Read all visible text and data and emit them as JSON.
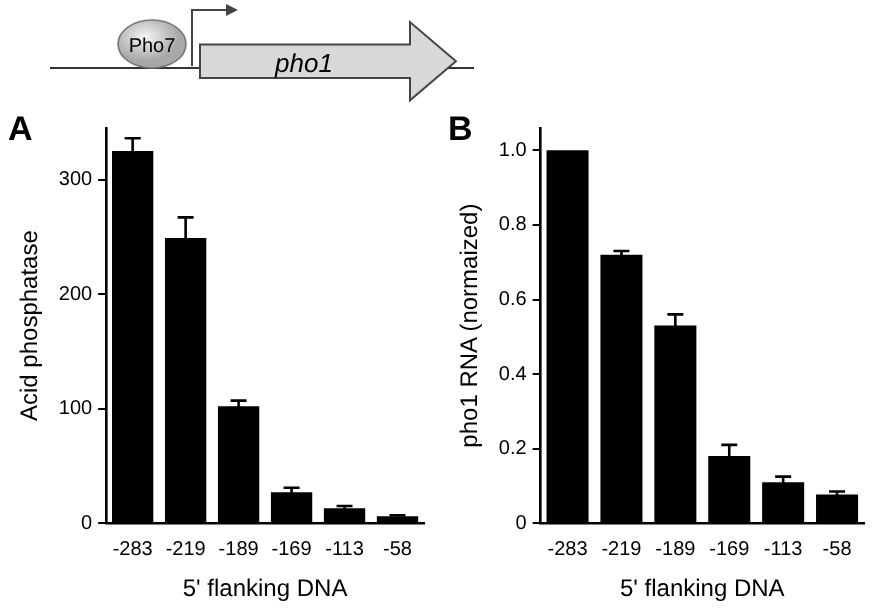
{
  "chart_data": [
    {
      "type": "other",
      "annotations": [
        "Pho7",
        "pho1"
      ]
    },
    {
      "type": "bar",
      "annotations": [
        "A"
      ],
      "xlabel": "5' flanking DNA",
      "ylabel": "Acid phosphatase",
      "categories": [
        "-283",
        "-219",
        "-189",
        "-169",
        "-113",
        "-58"
      ],
      "values": [
        325,
        249,
        102,
        27,
        13,
        6
      ],
      "errors": [
        11,
        18,
        5,
        4,
        2,
        1
      ],
      "color": "#000000",
      "ylim": [
        0,
        345
      ],
      "yticks": [
        0,
        100,
        200,
        300
      ],
      "grid": false
    },
    {
      "type": "bar",
      "annotations": [
        "B"
      ],
      "xlabel": "5' flanking DNA",
      "ylabel": "pho1 RNA (normaized)",
      "categories": [
        "-283",
        "-219",
        "-189",
        "-169",
        "-113",
        "-58"
      ],
      "values": [
        1.0,
        0.72,
        0.53,
        0.18,
        0.11,
        0.077
      ],
      "errors": [
        null,
        0.01,
        0.03,
        0.03,
        0.015,
        0.008
      ],
      "color": "#000000",
      "ylim": [
        0,
        1.06
      ],
      "yticks": [
        0,
        {
          "value": 0.2,
          "label": "0.2"
        },
        {
          "value": 0.4,
          "label": "0.4"
        },
        {
          "value": 0.6,
          "label": "0.6"
        },
        {
          "value": 0.8,
          "label": "0.8"
        },
        {
          "value": 1,
          "label": "1.0"
        }
      ],
      "grid": false
    }
  ]
}
